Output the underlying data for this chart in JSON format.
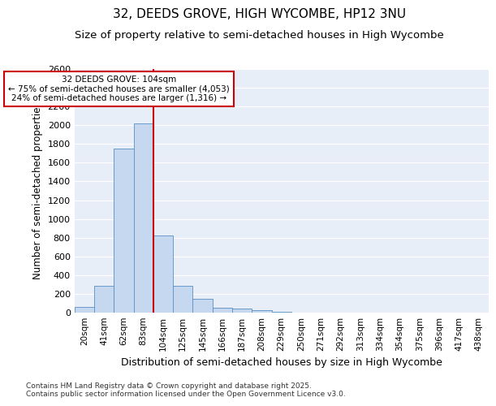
{
  "title": "32, DEEDS GROVE, HIGH WYCOMBE, HP12 3NU",
  "subtitle": "Size of property relative to semi-detached houses in High Wycombe",
  "xlabel": "Distribution of semi-detached houses by size in High Wycombe",
  "ylabel": "Number of semi-detached properties",
  "categories": [
    "20sqm",
    "41sqm",
    "62sqm",
    "83sqm",
    "104sqm",
    "125sqm",
    "145sqm",
    "166sqm",
    "187sqm",
    "208sqm",
    "229sqm",
    "250sqm",
    "271sqm",
    "292sqm",
    "313sqm",
    "334sqm",
    "354sqm",
    "375sqm",
    "396sqm",
    "417sqm",
    "438sqm"
  ],
  "values": [
    60,
    290,
    1750,
    2020,
    820,
    285,
    150,
    50,
    40,
    25,
    5,
    3,
    2,
    1,
    0,
    0,
    0,
    0,
    0,
    0,
    0
  ],
  "bar_color": "#c5d8f0",
  "bar_edge_color": "#5a8fc3",
  "vline_x": 3.5,
  "vline_color": "#cc0000",
  "annotation_title": "32 DEEDS GROVE: 104sqm",
  "annotation_line1": "← 75% of semi-detached houses are smaller (4,053)",
  "annotation_line2": "24% of semi-detached houses are larger (1,316) →",
  "annotation_box_color": "#cc0000",
  "ylim": [
    0,
    2600
  ],
  "yticks": [
    0,
    200,
    400,
    600,
    800,
    1000,
    1200,
    1400,
    1600,
    1800,
    2000,
    2200,
    2400,
    2600
  ],
  "background_color": "#e8eef8",
  "footer_line1": "Contains HM Land Registry data © Crown copyright and database right 2025.",
  "footer_line2": "Contains public sector information licensed under the Open Government Licence v3.0.",
  "title_fontsize": 11,
  "subtitle_fontsize": 9.5,
  "bar_width": 1.0
}
